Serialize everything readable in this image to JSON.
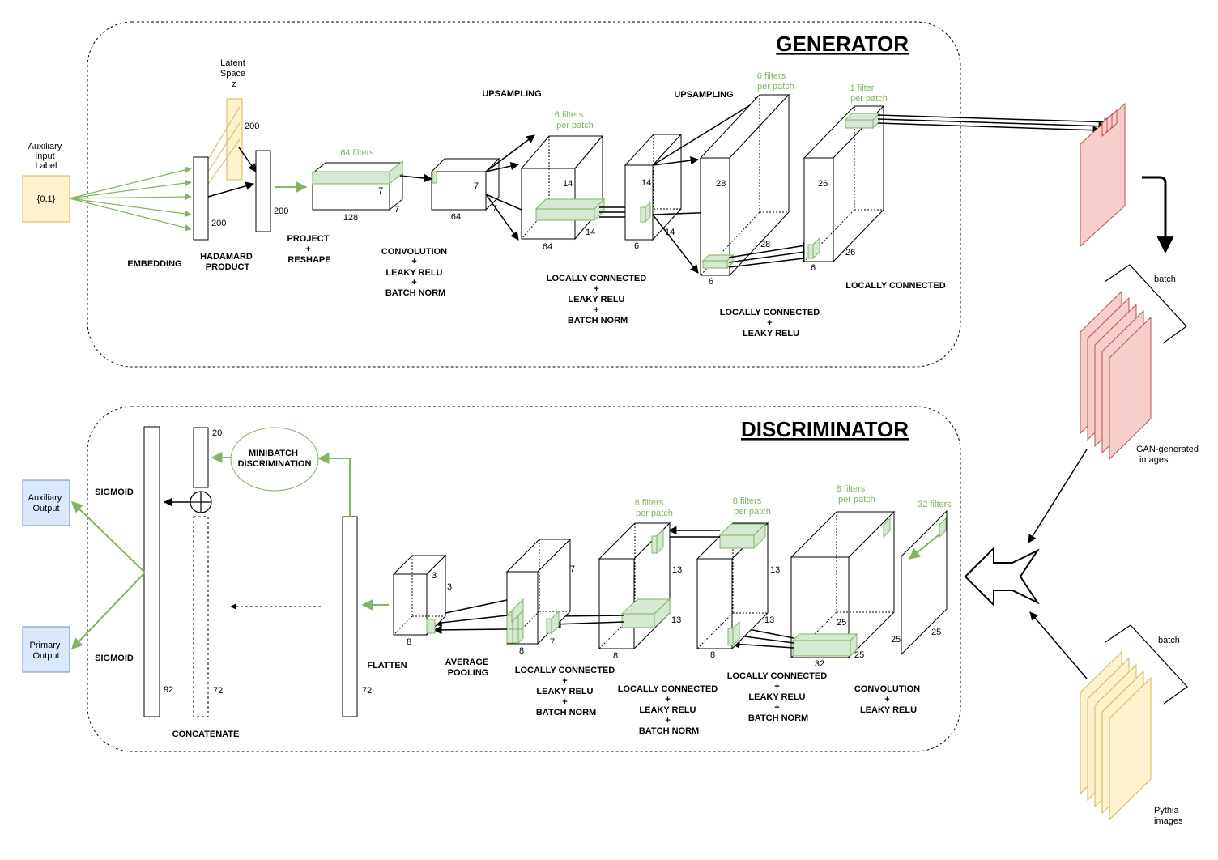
{
  "colors": {
    "green": "#82b366",
    "green_fill": "#d5e8d4",
    "yellow_fill": "#fff2cc",
    "yellow_stroke": "#d6b656",
    "pink_fill": "#f8cecc",
    "pink_stroke": "#b85450",
    "blue_fill": "#dae8fc",
    "blue_stroke": "#6c8ebf"
  },
  "generator": {
    "title": "GENERATOR",
    "aux_label": [
      "Auxiliary",
      "Input",
      "Label"
    ],
    "aux_value": "{0,1}",
    "latent": [
      "Latent",
      "Space",
      "z"
    ],
    "dims": {
      "latent": "200",
      "embed": "200",
      "hadamard": "200",
      "proj_h": "7",
      "proj_w": "128",
      "proj_d": "7",
      "conv_h": "7",
      "conv_w": "64",
      "conv_d": "7",
      "lc1_h": "14",
      "lc1_w": "64",
      "lc1_d": "14",
      "up2_h": "14",
      "up2_w": "6",
      "up2_d": "14",
      "lc2_h": "28",
      "lc2_w": "6",
      "lc2_d": "28",
      "lc3_h": "26",
      "lc3_w": "6",
      "lc3_d": "26"
    },
    "filters": {
      "f64": "64 filters",
      "f6a": [
        "6 filters",
        "per patch"
      ],
      "f6b": [
        "6 filters",
        "per patch"
      ],
      "f1": [
        "1 filter",
        "per patch"
      ]
    },
    "ops": {
      "embedding": "EMBEDDING",
      "hadamard": [
        "HADAMARD",
        "PRODUCT"
      ],
      "project": [
        "PROJECT",
        "+",
        "RESHAPE"
      ],
      "upsampling1": "UPSAMPLING",
      "convolution": [
        "CONVOLUTION",
        "+",
        "LEAKY RELU",
        "+",
        "BATCH NORM"
      ],
      "upsampling2": "UPSAMPLING",
      "lc1": [
        "LOCALLY CONNECTED",
        "+",
        "LEAKY RELU",
        "+",
        "BATCH NORM"
      ],
      "lc2": [
        "LOCALLY CONNECTED",
        "+",
        "LEAKY RELU"
      ],
      "lc3": "LOCALLY CONNECTED"
    }
  },
  "right": {
    "batch1": "batch",
    "gan_images": [
      "GAN-generated",
      "images"
    ],
    "batch2": "batch",
    "pythia_images": [
      "Pythia",
      "images"
    ]
  },
  "discriminator": {
    "title": "DISCRIMINATOR",
    "outputs": {
      "auxiliary": [
        "Auxiliary",
        "Output"
      ],
      "primary": [
        "Primary",
        "Output"
      ]
    },
    "sigmoid1": "SIGMOID",
    "sigmoid2": "SIGMOID",
    "minibatch": [
      "MINIBATCH",
      "DISCRIMINATION"
    ],
    "concatenate": "CONCATENATE",
    "flatten": "FLATTEN",
    "avg_pooling": [
      "AVERAGE",
      "POOLING"
    ],
    "filters": {
      "f32": "32 filters",
      "f8a": [
        "8 filters",
        "per patch"
      ],
      "f8b": [
        "8 filters",
        "per patch"
      ],
      "f8c": [
        "8 filters",
        "per patch"
      ]
    },
    "ops": {
      "conv": [
        "CONVOLUTION",
        "+",
        "LEAKY RELU"
      ],
      "lc1": [
        "LOCALLY CONNECTED",
        "+",
        "LEAKY RELU",
        "+",
        "BATCH NORM"
      ],
      "lc2": [
        "LOCALLY CONNECTED",
        "+",
        "LEAKY RELU",
        "+",
        "BATCH NORM"
      ],
      "lc3": [
        "LOCALLY CONNECTED",
        "+",
        "LEAKY RELU",
        "+",
        "BATCH NORM"
      ]
    },
    "dims": {
      "concat_total": "92",
      "mbd": "20",
      "concat_part": "72",
      "flat": "72",
      "in_w": "25",
      "in_h": "25",
      "c1_h": "25",
      "c1_w": "32",
      "c1_d": "25",
      "l1_h": "13",
      "l1_w": "8",
      "l1_d": "13",
      "l2_h": "13",
      "l2_w": "8",
      "l2_d": "13",
      "l3_h": "7",
      "l3_w": "8",
      "l3_d": "7",
      "p_h": "3",
      "p_w": "8",
      "p_d": "3"
    }
  }
}
